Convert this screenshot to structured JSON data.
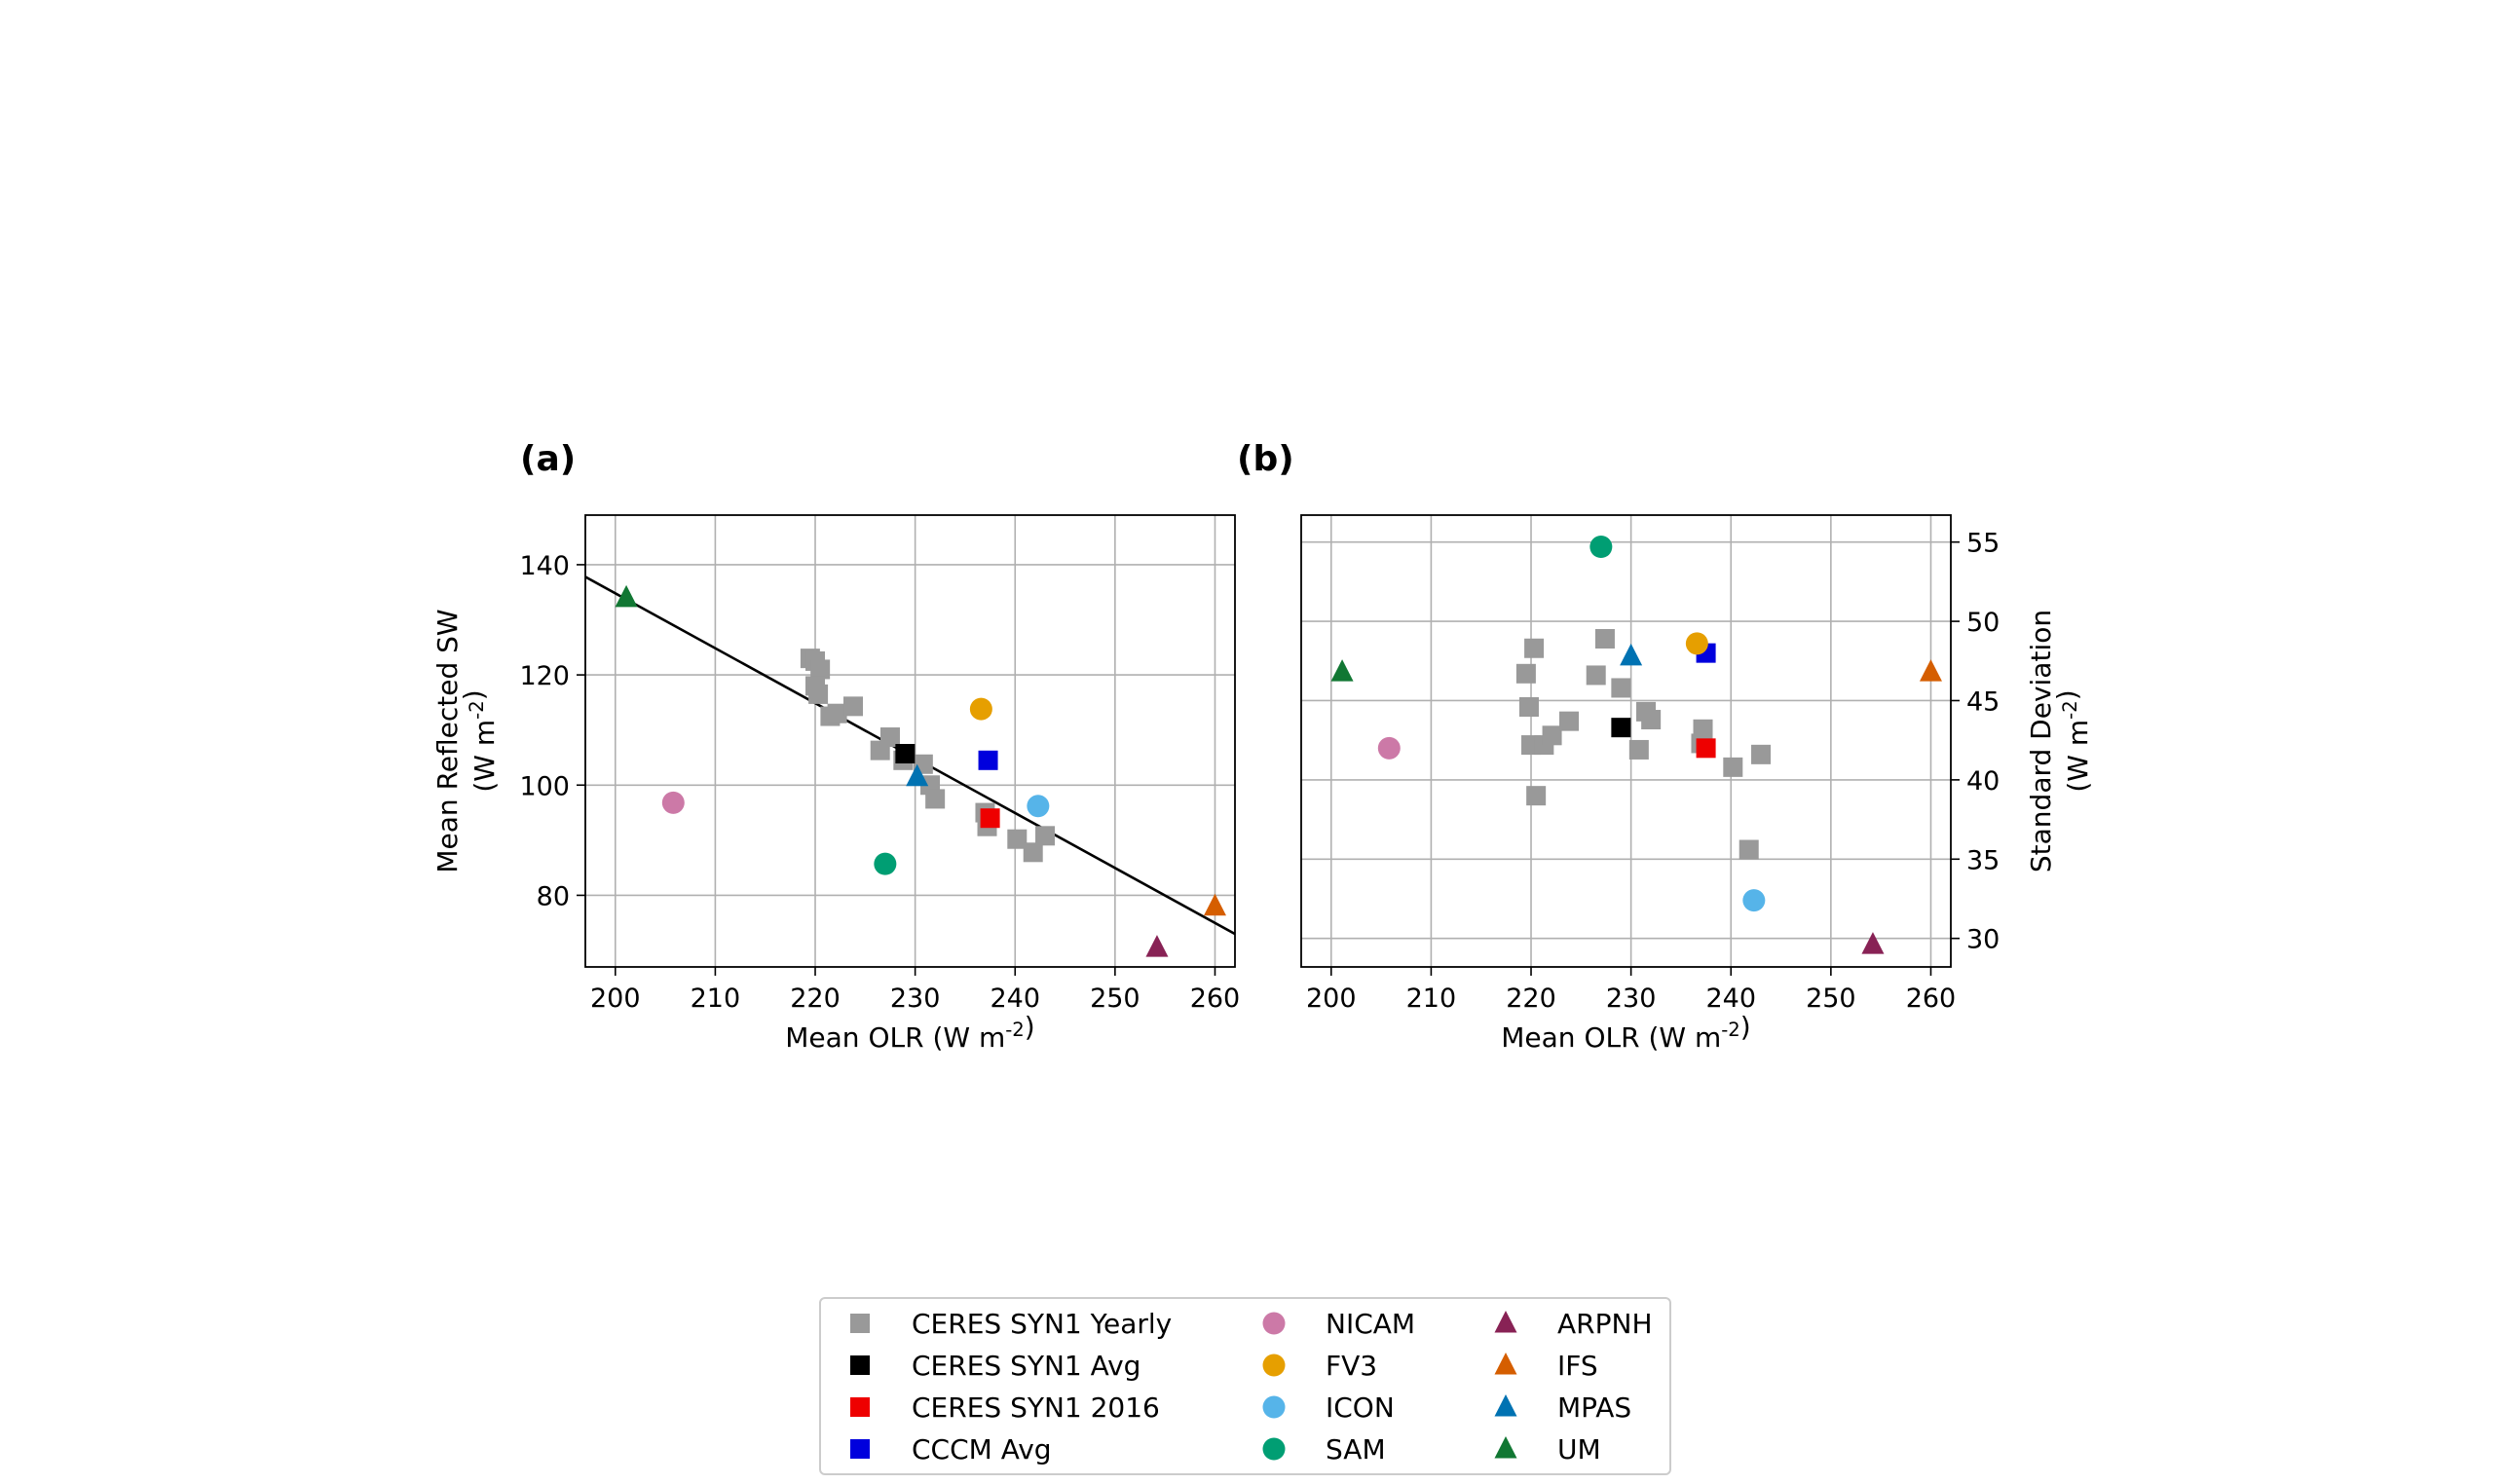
{
  "chart_data": [
    {
      "panel_label": "(a)",
      "type": "scatter",
      "xlabel": "Mean OLR (W m$^{-2}$)",
      "ylabel": "Mean Reflected SW\n(W m$^{-2}$)",
      "xlim": [
        197,
        262
      ],
      "ylim": [
        67,
        149
      ],
      "xticks": [
        200,
        210,
        220,
        230,
        240,
        250,
        260
      ],
      "yticks": [
        80,
        100,
        120,
        140
      ],
      "yaxis_side": "left",
      "grid": true,
      "fit_line": {
        "x": [
          197,
          262
        ],
        "y": [
          137.8,
          73.0
        ]
      },
      "series": [
        {
          "name": "CERES SYN1 Yearly",
          "marker": "square",
          "color": "#999999",
          "points": [
            [
              219.5,
              123
            ],
            [
              220,
              122.5
            ],
            [
              220.5,
              121
            ],
            [
              220,
              118
            ],
            [
              220.3,
              116.5
            ],
            [
              221.5,
              112.5
            ],
            [
              222.2,
              113
            ],
            [
              223.8,
              114.3
            ],
            [
              226.5,
              106.3
            ],
            [
              227.5,
              108.7
            ],
            [
              228.8,
              104.5
            ],
            [
              230.8,
              103.8
            ],
            [
              231.5,
              100
            ],
            [
              232,
              97.5
            ],
            [
              237,
              95
            ],
            [
              237.2,
              92.5
            ],
            [
              240.2,
              90.2
            ],
            [
              241.8,
              87.8
            ],
            [
              243,
              90.8
            ]
          ]
        },
        {
          "name": "CERES SYN1 Avg",
          "marker": "square",
          "color": "#000000",
          "points": [
            [
              229,
              105.7
            ]
          ]
        },
        {
          "name": "CERES SYN1 2016",
          "marker": "square",
          "color": "#ee0000",
          "points": [
            [
              237.5,
              94
            ]
          ]
        },
        {
          "name": "CCCM Avg",
          "marker": "square",
          "color": "#0000dd",
          "points": [
            [
              237.3,
              104.5
            ]
          ]
        },
        {
          "name": "NICAM",
          "marker": "circle",
          "color": "#cc79a7",
          "points": [
            [
              205.8,
              96.8
            ]
          ]
        },
        {
          "name": "FV3",
          "marker": "circle",
          "color": "#e69f00",
          "points": [
            [
              236.6,
              113.8
            ]
          ]
        },
        {
          "name": "ICON",
          "marker": "circle",
          "color": "#56b4e9",
          "points": [
            [
              242.3,
              96.2
            ]
          ]
        },
        {
          "name": "SAM",
          "marker": "circle",
          "color": "#009e73",
          "points": [
            [
              227,
              85.7
            ]
          ]
        },
        {
          "name": "ARPNH",
          "marker": "triangle",
          "color": "#882255",
          "points": [
            [
              254.2,
              70.5
            ]
          ]
        },
        {
          "name": "IFS",
          "marker": "triangle",
          "color": "#d55e00",
          "points": [
            [
              260,
              78
            ]
          ]
        },
        {
          "name": "MPAS",
          "marker": "triangle",
          "color": "#0072b2",
          "points": [
            [
              230.2,
              101.5
            ]
          ]
        },
        {
          "name": "UM",
          "marker": "triangle",
          "color": "#117733",
          "points": [
            [
              201.1,
              134
            ]
          ]
        }
      ]
    },
    {
      "panel_label": "(b)",
      "type": "scatter",
      "xlabel": "Mean OLR (W m$^{-2}$)",
      "ylabel": "Standard Deviation\n(W m$^{-2}$)",
      "xlim": [
        197,
        262
      ],
      "ylim": [
        28.2,
        56.7
      ],
      "xticks": [
        200,
        210,
        220,
        230,
        240,
        250,
        260
      ],
      "yticks": [
        30,
        35,
        40,
        45,
        50,
        55
      ],
      "yaxis_side": "right",
      "grid": true,
      "series": [
        {
          "name": "CERES SYN1 Yearly",
          "marker": "square",
          "color": "#999999",
          "points": [
            [
              219.5,
              46.7
            ],
            [
              220.3,
              48.3
            ],
            [
              219.8,
              44.6
            ],
            [
              220,
              42.2
            ],
            [
              220.5,
              39
            ],
            [
              221.3,
              42.2
            ],
            [
              222.1,
              42.8
            ],
            [
              223.8,
              43.7
            ],
            [
              226.5,
              46.6
            ],
            [
              227.4,
              48.9
            ],
            [
              229,
              45.8
            ],
            [
              230.8,
              41.9
            ],
            [
              231.5,
              44.3
            ],
            [
              232,
              43.8
            ],
            [
              237.2,
              43.2
            ],
            [
              237,
              42.3
            ],
            [
              240.2,
              40.8
            ],
            [
              241.8,
              35.6
            ],
            [
              243,
              41.6
            ]
          ]
        },
        {
          "name": "CERES SYN1 Avg",
          "marker": "square",
          "color": "#000000",
          "points": [
            [
              229,
              43.3
            ]
          ]
        },
        {
          "name": "CERES SYN1 2016",
          "marker": "square",
          "color": "#ee0000",
          "points": [
            [
              237.5,
              42
            ]
          ]
        },
        {
          "name": "CCCM Avg",
          "marker": "square",
          "color": "#0000dd",
          "points": [
            [
              237.5,
              48
            ]
          ]
        },
        {
          "name": "NICAM",
          "marker": "circle",
          "color": "#cc79a7",
          "points": [
            [
              205.8,
              42
            ]
          ]
        },
        {
          "name": "FV3",
          "marker": "circle",
          "color": "#e69f00",
          "points": [
            [
              236.6,
              48.6
            ]
          ]
        },
        {
          "name": "ICON",
          "marker": "circle",
          "color": "#56b4e9",
          "points": [
            [
              242.3,
              32.4
            ]
          ]
        },
        {
          "name": "SAM",
          "marker": "circle",
          "color": "#009e73",
          "points": [
            [
              227,
              54.7
            ]
          ]
        },
        {
          "name": "ARPNH",
          "marker": "triangle",
          "color": "#882255",
          "points": [
            [
              254.2,
              29.6
            ]
          ]
        },
        {
          "name": "IFS",
          "marker": "triangle",
          "color": "#d55e00",
          "points": [
            [
              260,
              46.8
            ]
          ]
        },
        {
          "name": "MPAS",
          "marker": "triangle",
          "color": "#0072b2",
          "points": [
            [
              230,
              47.8
            ]
          ]
        },
        {
          "name": "UM",
          "marker": "triangle",
          "color": "#117733",
          "points": [
            [
              201.1,
              46.8
            ]
          ]
        }
      ]
    }
  ],
  "legend": {
    "placement": "bottom-center",
    "columns": [
      [
        "CERES SYN1 Yearly",
        "CERES SYN1 Avg",
        "CERES SYN1 2016",
        "CCCM Avg"
      ],
      [
        "NICAM",
        "FV3",
        "ICON",
        "SAM"
      ],
      [
        "ARPNH",
        "IFS",
        "MPAS",
        "UM"
      ]
    ]
  }
}
